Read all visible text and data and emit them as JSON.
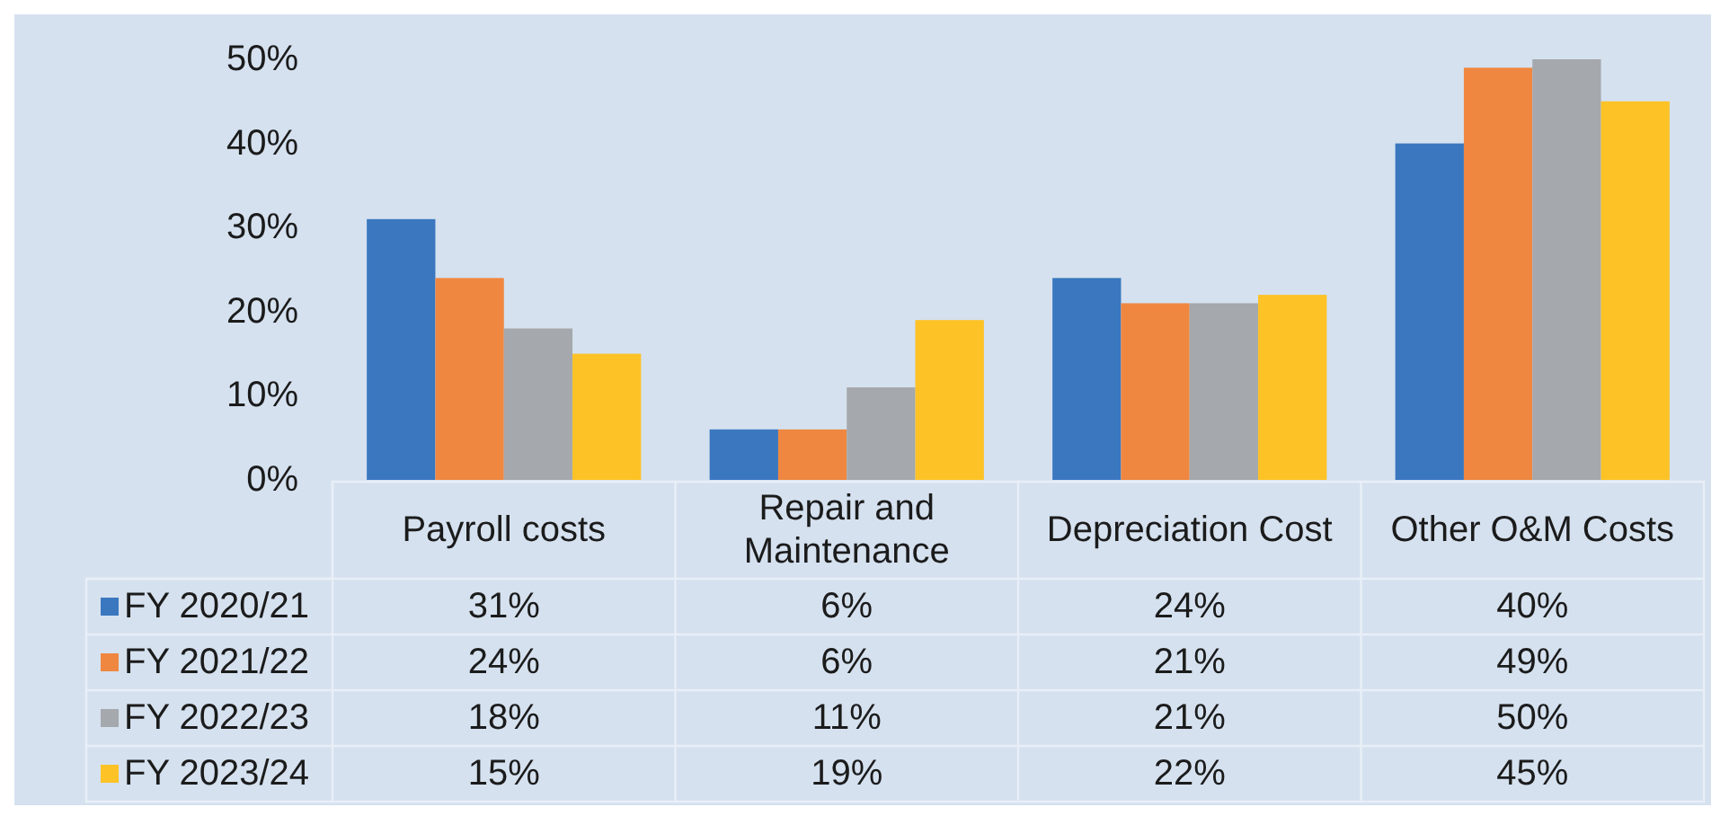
{
  "chart_data": {
    "type": "bar",
    "categories": [
      "Payroll costs",
      "Repair and Maintenance",
      "Depreciation Cost",
      "Other O&M Costs"
    ],
    "series": [
      {
        "name": "FY 2020/21",
        "color": "#3a77bf",
        "values": [
          31,
          6,
          24,
          40
        ],
        "value_labels": [
          "31%",
          "6%",
          "24%",
          "40%"
        ]
      },
      {
        "name": "FY 2021/22",
        "color": "#ef8740",
        "values": [
          24,
          6,
          21,
          49
        ],
        "value_labels": [
          "24%",
          "6%",
          "21%",
          "49%"
        ]
      },
      {
        "name": "FY 2022/23",
        "color": "#a5a8ac",
        "values": [
          18,
          11,
          21,
          50
        ],
        "value_labels": [
          "18%",
          "11%",
          "21%",
          "50%"
        ]
      },
      {
        "name": "FY 2023/24",
        "color": "#fdc225",
        "values": [
          15,
          19,
          22,
          45
        ],
        "value_labels": [
          "15%",
          "19%",
          "22%",
          "45%"
        ]
      }
    ],
    "ylim": [
      0,
      50
    ],
    "yticks": [
      {
        "value": 0,
        "label": "0%"
      },
      {
        "value": 10,
        "label": "10%"
      },
      {
        "value": 20,
        "label": "20%"
      },
      {
        "value": 30,
        "label": "30%"
      },
      {
        "value": 40,
        "label": "40%"
      },
      {
        "value": 50,
        "label": "50%"
      }
    ],
    "legend": "bottom left"
  }
}
